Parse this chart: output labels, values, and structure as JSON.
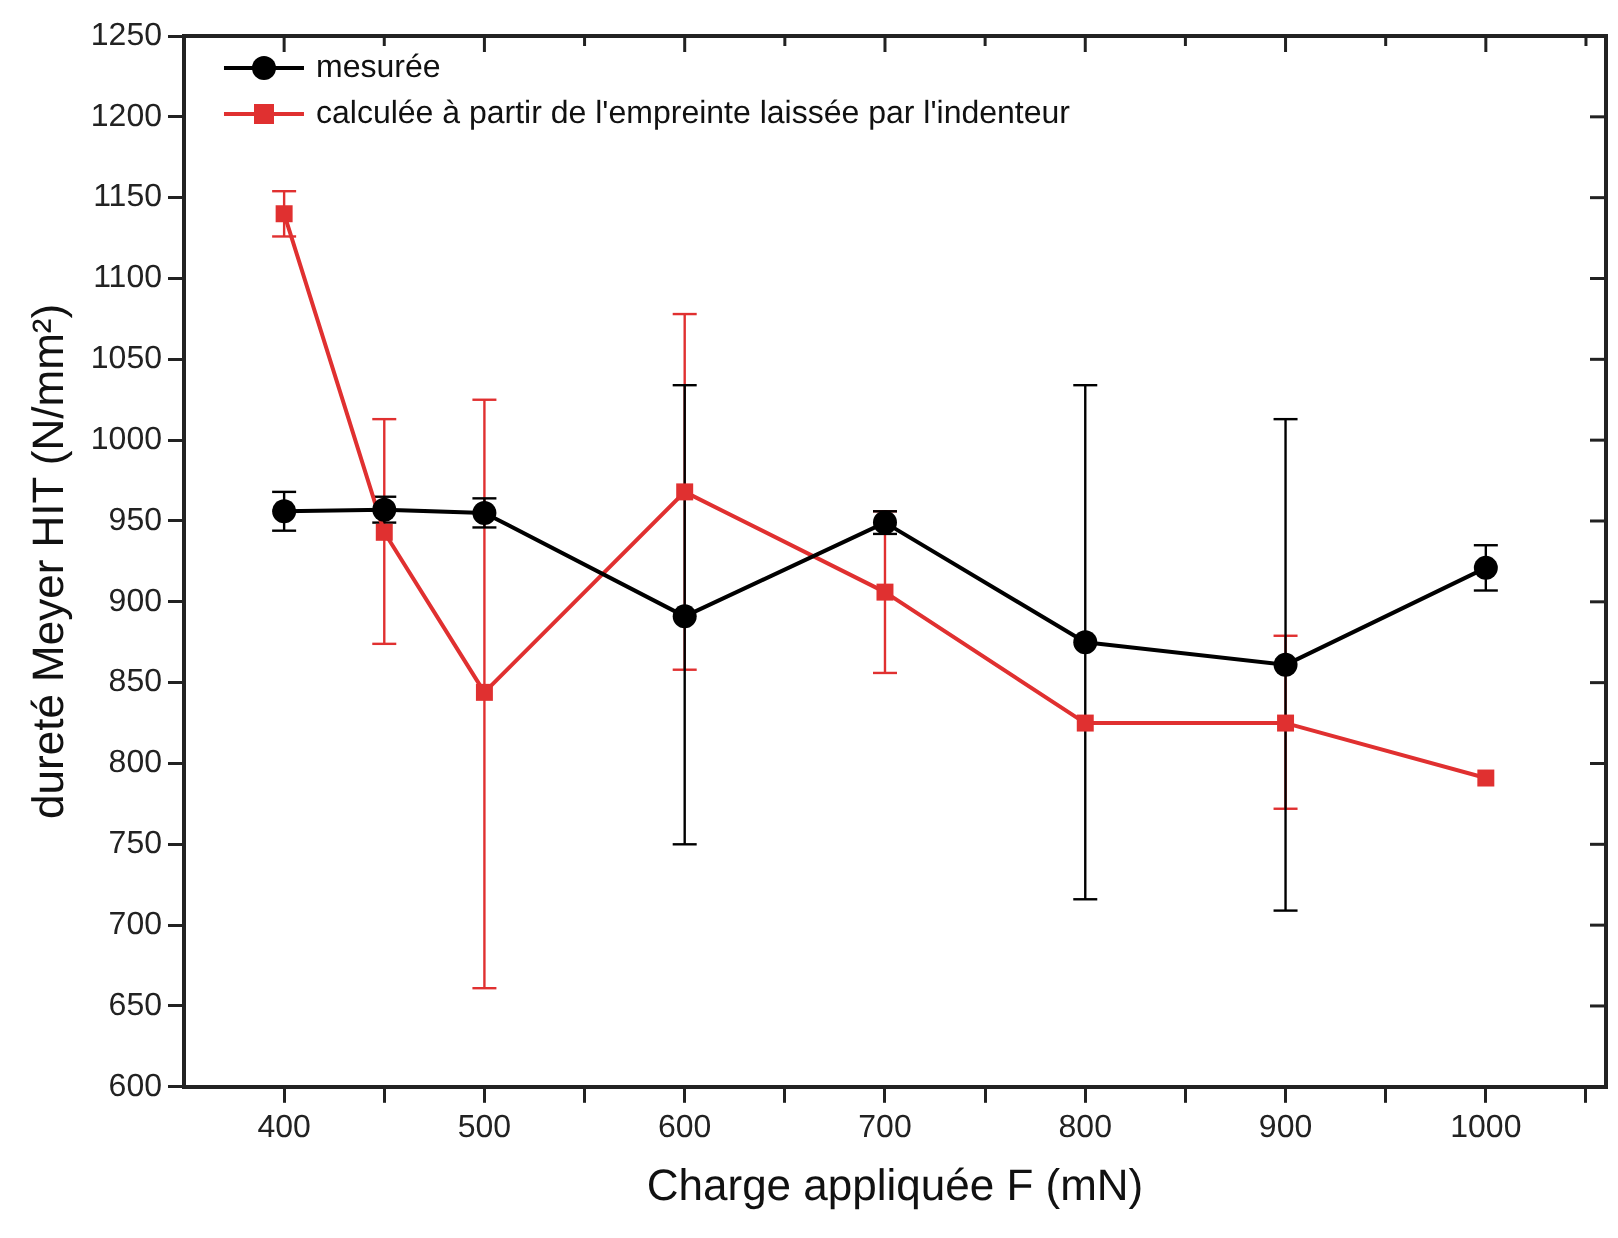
{
  "chart_data": {
    "type": "line",
    "xlabel": "Charge appliquée F (mN)",
    "ylabel": "dureté Meyer HIT (N/mm²)",
    "x": [
      400,
      450,
      500,
      600,
      700,
      800,
      900,
      1000
    ],
    "series": [
      {
        "name": "mesurée",
        "color": "#000000",
        "marker": "circle",
        "values": [
          956,
          957,
          955,
          891,
          949,
          875,
          861,
          921
        ],
        "errors": [
          12,
          8,
          9,
          [
            750,
            1034
          ],
          7,
          [
            716,
            1034
          ],
          [
            709,
            1013
          ],
          14
        ]
      },
      {
        "name": "calculée à partir de l'empreinte laissée par l'indenteur",
        "color": "#e03030",
        "marker": "square",
        "values": [
          1140,
          943,
          844,
          968,
          906,
          825,
          825,
          791
        ],
        "errors": [
          14,
          [
            874,
            1013
          ],
          [
            661,
            1025
          ],
          [
            858,
            1078
          ],
          50,
          null,
          [
            772,
            879
          ],
          null
        ]
      }
    ],
    "xlim": [
      350,
      1060
    ],
    "xticks": [
      400,
      {
        "value": 450,
        "label": null
      },
      500,
      {
        "value": 550,
        "label": null
      },
      600,
      {
        "value": 650,
        "label": null
      },
      700,
      {
        "value": 750,
        "label": null
      },
      800,
      {
        "value": 850,
        "label": null
      },
      900,
      {
        "value": 950,
        "label": null
      },
      1000,
      {
        "value": 1050,
        "label": null
      }
    ],
    "ylim": [
      600,
      1250
    ],
    "yticks": [
      600,
      650,
      700,
      750,
      800,
      850,
      900,
      950,
      1000,
      1050,
      1100,
      1150,
      1200,
      1250
    ],
    "grid": false,
    "legend": "top left",
    "line_style": "solid"
  }
}
